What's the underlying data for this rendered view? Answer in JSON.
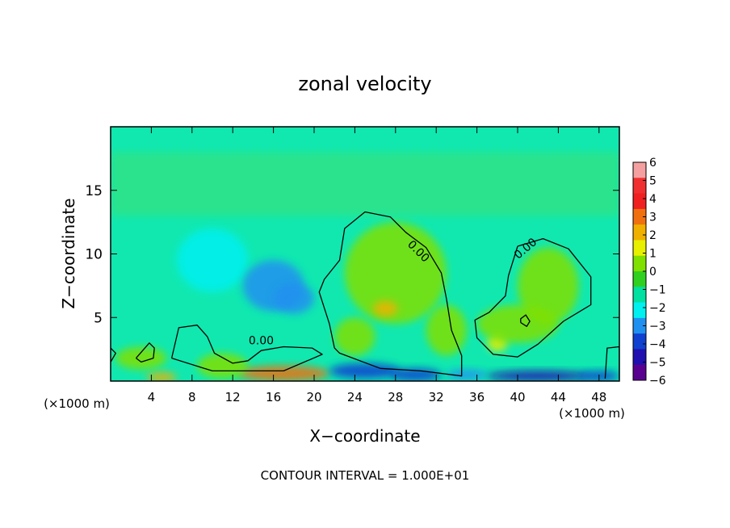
{
  "chart_data": {
    "type": "heatmap",
    "title": "zonal velocity",
    "xlabel": "X−coordinate",
    "ylabel": "Z−coordinate",
    "x_unit_left": "(×1000 m)",
    "x_unit_right": "(×1000 m)",
    "xlim": [
      0,
      50
    ],
    "ylim": [
      0,
      20
    ],
    "x_ticks": [
      4,
      8,
      12,
      16,
      20,
      24,
      28,
      32,
      36,
      40,
      44,
      48
    ],
    "y_ticks": [
      5,
      10,
      15
    ],
    "footer": "CONTOUR INTERVAL = 1.000E+01",
    "colorbar": {
      "levels": [
        6,
        5,
        4,
        3,
        2,
        1,
        0,
        -1,
        -2,
        -3,
        -4,
        -5,
        -6
      ],
      "labels": [
        "6",
        "5",
        "4",
        "3",
        "2",
        "1",
        "0",
        "−1",
        "−2",
        "−3",
        "−4",
        "−5",
        "−6"
      ],
      "colors": [
        "#f4a0a0",
        "#f03030",
        "#f02020",
        "#f07010",
        "#f0b000",
        "#e8f000",
        "#80e000",
        "#30d020",
        "#00e0a0",
        "#00f0f0",
        "#2090f0",
        "#1040d0",
        "#2010b0",
        "#5a0090"
      ]
    },
    "background_color": "#10e8b0",
    "contour_labels": [
      {
        "text": "0.00",
        "x": 14.8,
        "z": 2.9,
        "angle": 0
      },
      {
        "text": "0.00",
        "x": 30.0,
        "z": 10.0,
        "angle": 45
      },
      {
        "text": "0.00",
        "x": 41.0,
        "z": 10.2,
        "angle": -40
      }
    ],
    "blobs": [
      {
        "x": 10,
        "z": 9.5,
        "rx": 3.5,
        "rz": 2.5,
        "v": -2.0
      },
      {
        "x": 16,
        "z": 7.5,
        "rx": 3.0,
        "rz": 2.0,
        "v": -3.0
      },
      {
        "x": 18,
        "z": 6.5,
        "rx": 2.0,
        "rz": 1.2,
        "v": -2.8
      },
      {
        "x": 28,
        "z": 8.5,
        "rx": 5.0,
        "rz": 4.0,
        "v": 1.0
      },
      {
        "x": 27,
        "z": 5.7,
        "rx": 1.2,
        "rz": 0.6,
        "v": 3.0
      },
      {
        "x": 38,
        "z": 3.0,
        "rx": 1.0,
        "rz": 0.7,
        "v": 2.5
      },
      {
        "x": 43,
        "z": 7.5,
        "rx": 3.0,
        "rz": 3.0,
        "v": 1.2
      },
      {
        "x": 40,
        "z": 4.5,
        "rx": 4.0,
        "rz": 1.5,
        "v": 0.8
      },
      {
        "x": 17,
        "z": 0.6,
        "rx": 4.5,
        "rz": 0.6,
        "v": 4.5
      },
      {
        "x": 5,
        "z": 0.3,
        "rx": 1.5,
        "rz": 0.4,
        "v": 3.5
      },
      {
        "x": 11,
        "z": 1.2,
        "rx": 2.5,
        "rz": 1.0,
        "v": 1.5
      },
      {
        "x": 3,
        "z": 1.8,
        "rx": 2.5,
        "rz": 0.9,
        "v": 0.9
      },
      {
        "x": 25,
        "z": 0.8,
        "rx": 3.5,
        "rz": 0.6,
        "v": -3.5
      },
      {
        "x": 30,
        "z": 0.5,
        "rx": 2.5,
        "rz": 0.5,
        "v": -3.8
      },
      {
        "x": 35,
        "z": 0.5,
        "rx": 2.0,
        "rz": 0.4,
        "v": -3.0
      },
      {
        "x": 42,
        "z": 0.4,
        "rx": 5.0,
        "rz": 0.4,
        "v": -4.5
      },
      {
        "x": 48,
        "z": 0.4,
        "rx": 2.0,
        "rz": 0.4,
        "v": -3.5
      },
      {
        "x": 24,
        "z": 3.5,
        "rx": 2.0,
        "rz": 1.5,
        "v": 1.2
      },
      {
        "x": 33,
        "z": 4.0,
        "rx": 2.0,
        "rz": 2.0,
        "v": 0.7
      }
    ],
    "contours": [
      [
        [
          22,
          2.6
        ],
        [
          21.5,
          4.5
        ],
        [
          20.5,
          7
        ],
        [
          21,
          8
        ],
        [
          22.5,
          9.5
        ],
        [
          23,
          12
        ],
        [
          25,
          13.3
        ],
        [
          27.5,
          12.9
        ],
        [
          29,
          11.7
        ],
        [
          31,
          10.5
        ],
        [
          32.5,
          8.5
        ],
        [
          33,
          6.5
        ],
        [
          33.5,
          4
        ],
        [
          34.5,
          2
        ],
        [
          34.5,
          0.4
        ],
        [
          30.5,
          0.8
        ],
        [
          26.5,
          1.0
        ],
        [
          22.5,
          2.2
        ],
        [
          22,
          2.6
        ]
      ],
      [
        [
          40,
          10.6
        ],
        [
          42.5,
          11.2
        ],
        [
          45,
          10.4
        ],
        [
          47.2,
          8.2
        ],
        [
          47.2,
          6
        ],
        [
          44.5,
          4.7
        ],
        [
          42,
          2.9
        ],
        [
          40,
          1.9
        ],
        [
          37.6,
          2.1
        ],
        [
          36,
          3.4
        ],
        [
          35.8,
          4.8
        ],
        [
          37.2,
          5.4
        ],
        [
          38.8,
          6.7
        ],
        [
          39.1,
          8.3
        ],
        [
          40,
          10.6
        ]
      ],
      [
        [
          40.3,
          4.6
        ],
        [
          40.9,
          4.3
        ],
        [
          41.2,
          4.7
        ],
        [
          40.8,
          5.2
        ],
        [
          40.3,
          4.9
        ],
        [
          40.3,
          4.6
        ]
      ],
      [
        [
          6,
          1.8
        ],
        [
          6.7,
          4.2
        ],
        [
          8.5,
          4.4
        ],
        [
          9.5,
          3.5
        ],
        [
          10.2,
          2.2
        ],
        [
          12,
          1.4
        ],
        [
          13.5,
          1.6
        ],
        [
          14.8,
          2.4
        ],
        [
          17,
          2.7
        ],
        [
          19.8,
          2.6
        ],
        [
          20.8,
          2.1
        ],
        [
          17,
          0.8
        ],
        [
          10,
          0.8
        ],
        [
          6,
          1.8
        ]
      ],
      [
        [
          2.5,
          1.8
        ],
        [
          3.8,
          3.0
        ],
        [
          4.3,
          2.6
        ],
        [
          4.2,
          1.8
        ],
        [
          3,
          1.5
        ],
        [
          2.5,
          1.8
        ]
      ],
      [
        [
          48.6,
          0.2
        ],
        [
          48.8,
          2.6
        ],
        [
          50,
          2.7
        ],
        [
          50,
          0.2
        ]
      ],
      [
        [
          0,
          2.6
        ],
        [
          0.5,
          2.2
        ],
        [
          0,
          1.5
        ]
      ]
    ]
  }
}
